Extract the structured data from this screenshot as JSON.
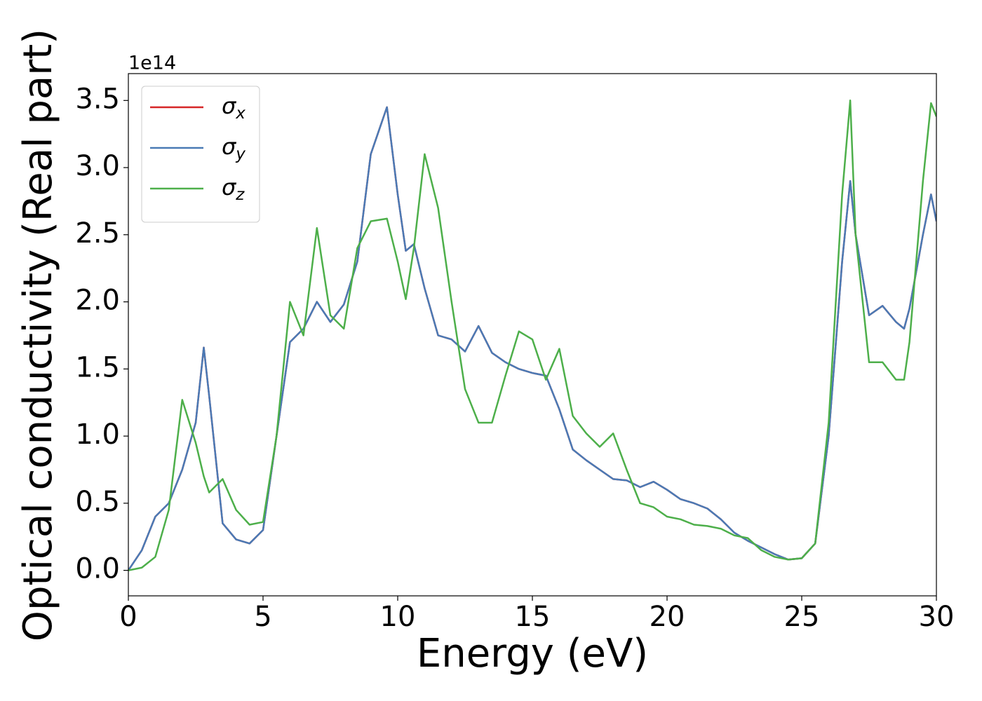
{
  "chart_data": {
    "type": "line",
    "xlabel": "Energy (eV)",
    "ylabel": "Optical conductivity (Real part)",
    "y_offset_label": "1e14",
    "x": [
      0,
      0.5,
      1,
      1.5,
      2,
      2.5,
      2.8,
      3,
      3.5,
      4,
      4.5,
      5,
      5.5,
      6,
      6.5,
      7,
      7.5,
      8,
      8.5,
      9,
      9.6,
      10,
      10.3,
      10.6,
      11,
      11.5,
      12,
      12.5,
      13,
      13.5,
      14,
      14.5,
      15,
      15.5,
      16,
      16.5,
      17,
      17.5,
      18,
      18.5,
      19,
      19.5,
      20,
      20.5,
      21,
      21.5,
      22,
      22.5,
      23,
      23.5,
      24,
      24.5,
      25,
      25.5,
      26,
      26.5,
      26.8,
      27,
      27.5,
      28,
      28.5,
      28.8,
      29,
      29.5,
      29.8,
      30
    ],
    "series": [
      {
        "name": "σx",
        "color": "#d62728",
        "values": [
          0,
          0.15,
          0.4,
          0.5,
          0.75,
          1.1,
          1.66,
          1.3,
          0.35,
          0.23,
          0.2,
          0.3,
          1.0,
          1.7,
          1.8,
          2.0,
          1.85,
          1.98,
          2.3,
          3.1,
          3.45,
          2.8,
          2.38,
          2.43,
          2.1,
          1.75,
          1.72,
          1.63,
          1.82,
          1.62,
          1.55,
          1.5,
          1.47,
          1.45,
          1.2,
          0.9,
          0.82,
          0.75,
          0.68,
          0.67,
          0.62,
          0.66,
          0.6,
          0.53,
          0.5,
          0.46,
          0.38,
          0.28,
          0.22,
          0.17,
          0.12,
          0.08,
          0.09,
          0.2,
          1.0,
          2.3,
          2.9,
          2.5,
          1.9,
          1.97,
          1.85,
          1.8,
          1.95,
          2.5,
          2.8,
          2.6
        ]
      },
      {
        "name": "σy",
        "color": "#4a7ab5",
        "values": [
          0,
          0.15,
          0.4,
          0.5,
          0.75,
          1.1,
          1.66,
          1.3,
          0.35,
          0.23,
          0.2,
          0.3,
          1.0,
          1.7,
          1.8,
          2.0,
          1.85,
          1.98,
          2.3,
          3.1,
          3.45,
          2.8,
          2.38,
          2.43,
          2.1,
          1.75,
          1.72,
          1.63,
          1.82,
          1.62,
          1.55,
          1.5,
          1.47,
          1.45,
          1.2,
          0.9,
          0.82,
          0.75,
          0.68,
          0.67,
          0.62,
          0.66,
          0.6,
          0.53,
          0.5,
          0.46,
          0.38,
          0.28,
          0.22,
          0.17,
          0.12,
          0.08,
          0.09,
          0.2,
          1.0,
          2.3,
          2.9,
          2.5,
          1.9,
          1.97,
          1.85,
          1.8,
          1.95,
          2.5,
          2.8,
          2.6
        ]
      },
      {
        "name": "σz",
        "color": "#4daf4a",
        "values": [
          0,
          0.02,
          0.1,
          0.45,
          1.27,
          0.95,
          0.7,
          0.58,
          0.68,
          0.45,
          0.34,
          0.36,
          1.0,
          2.0,
          1.75,
          2.55,
          1.9,
          1.8,
          2.4,
          2.6,
          2.62,
          2.3,
          2.02,
          2.4,
          3.1,
          2.7,
          2.0,
          1.35,
          1.1,
          1.1,
          1.45,
          1.78,
          1.72,
          1.42,
          1.65,
          1.15,
          1.02,
          0.92,
          1.02,
          0.75,
          0.5,
          0.47,
          0.4,
          0.38,
          0.34,
          0.33,
          0.31,
          0.26,
          0.24,
          0.15,
          0.1,
          0.08,
          0.09,
          0.2,
          1.1,
          2.8,
          3.5,
          2.5,
          1.55,
          1.55,
          1.42,
          1.42,
          1.7,
          2.9,
          3.48,
          3.38
        ]
      }
    ],
    "xlim": [
      0,
      30
    ],
    "xticks": [
      0,
      5,
      10,
      15,
      20,
      25,
      30
    ],
    "ylim": [
      -0.19,
      3.7
    ],
    "yticks": [
      {
        "value": 0,
        "label": "0.0"
      },
      {
        "value": 0.5,
        "label": "0.5"
      },
      {
        "value": 1,
        "label": "1.0"
      },
      {
        "value": 1.5,
        "label": "1.5"
      },
      {
        "value": 2,
        "label": "2.0"
      },
      {
        "value": 2.5,
        "label": "2.5"
      },
      {
        "value": 3,
        "label": "3.0"
      },
      {
        "value": 3.5,
        "label": "3.5"
      }
    ],
    "legend": "upper left",
    "grid": false
  }
}
